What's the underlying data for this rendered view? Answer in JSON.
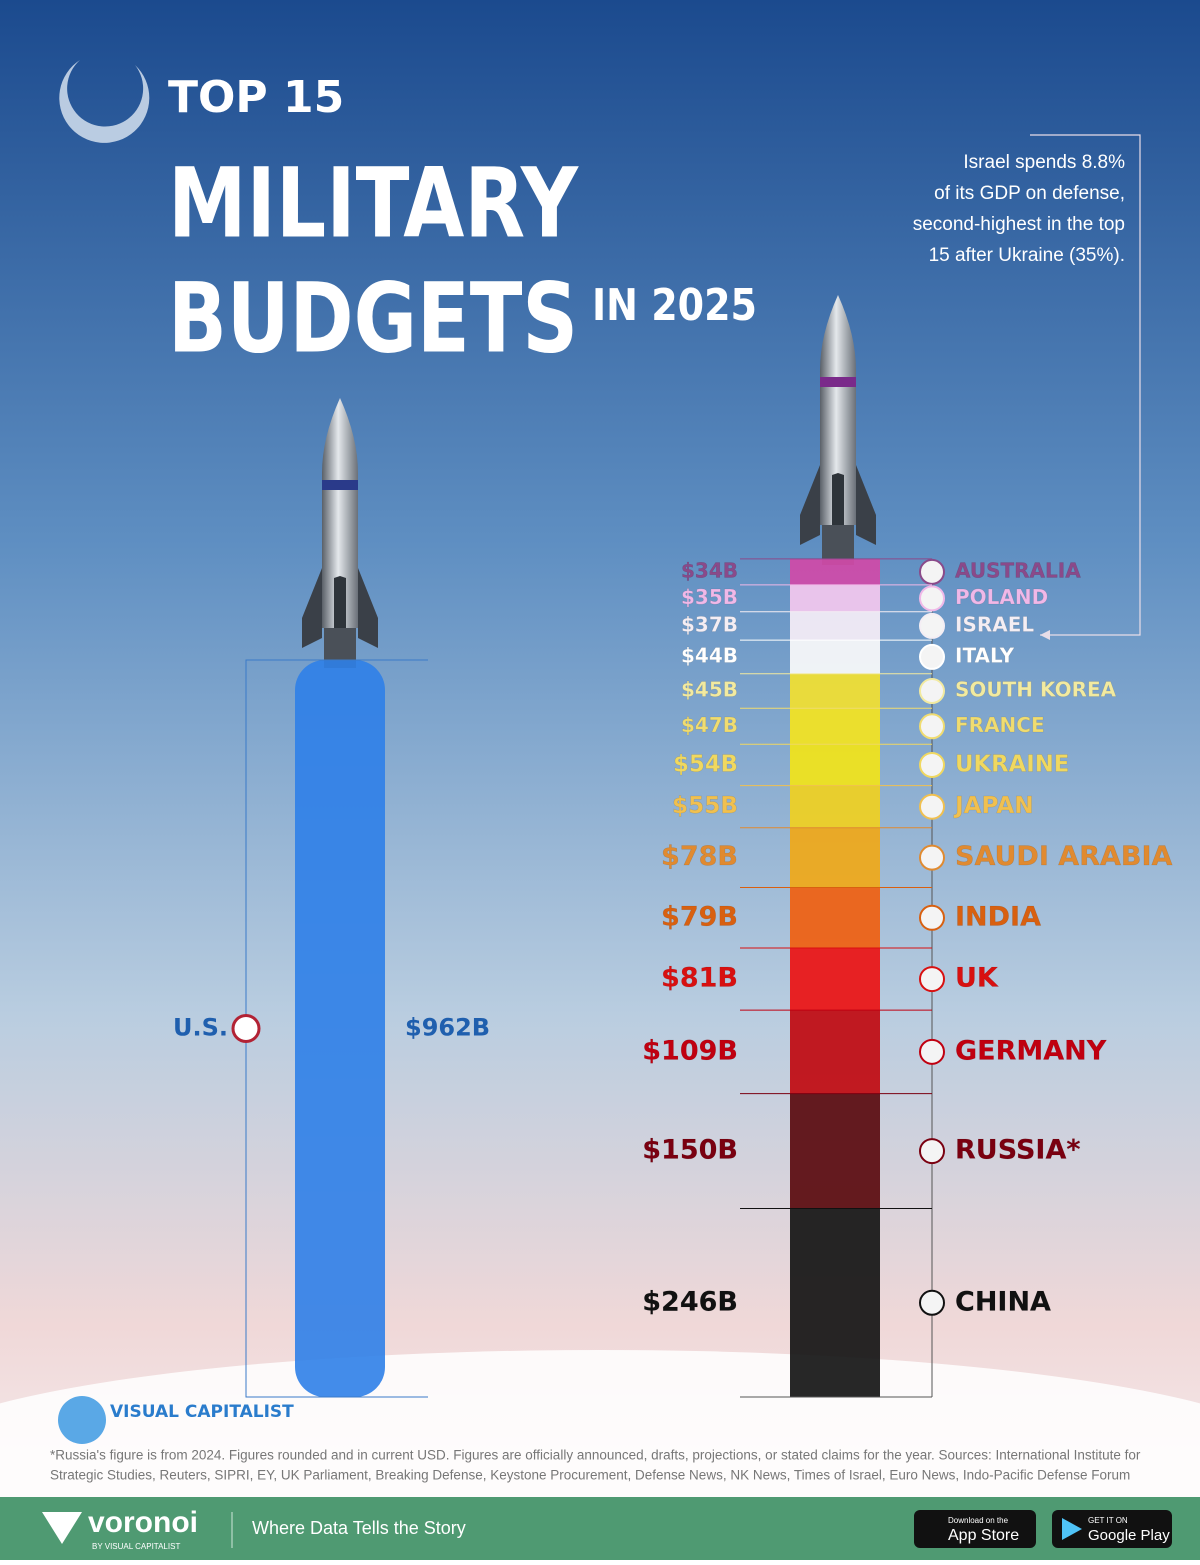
{
  "chart_data": {
    "type": "rocket-stack",
    "title": {
      "top": "TOP 15",
      "line1": "MILITARY",
      "line2": "BUDGETS",
      "year": "IN 2025"
    },
    "annotation": [
      "Israel spends 8.8%",
      "of its GDP on defense,",
      "second-highest in the top",
      "15 after Ukraine (35%)."
    ],
    "left": {
      "name": "U.S.",
      "values": [
        962
      ],
      "value_labels": [
        "$962B"
      ],
      "color": "#2f7fe8",
      "label_color": "#1f5fae"
    },
    "right": {
      "categories": [
        "AUSTRALIA",
        "POLAND",
        "ISRAEL",
        "ITALY",
        "SOUTH KOREA",
        "FRANCE",
        "UKRAINE",
        "JAPAN",
        "SAUDI ARABIA",
        "INDIA",
        "UK",
        "GERMANY",
        "RUSSIA*",
        "CHINA"
      ],
      "values": [
        34,
        35,
        37,
        44,
        45,
        47,
        54,
        55,
        78,
        79,
        81,
        109,
        150,
        246
      ],
      "value_labels": [
        "$34B",
        "$35B",
        "$37B",
        "$44B",
        "$45B",
        "$47B",
        "$54B",
        "$55B",
        "$78B",
        "$79B",
        "$81B",
        "$109B",
        "$150B",
        "$246B"
      ],
      "colors": [
        "#d04aa8",
        "#f4c8ee",
        "#f6eef6",
        "#fafafa",
        "#f2e030",
        "#f4e420",
        "#f2e418",
        "#f0d020",
        "#f0a818",
        "#f06010",
        "#ec1212",
        "#c00a10",
        "#5a0a0e",
        "#151515"
      ],
      "label_colors": [
        "#8a4a8a",
        "#f0b8e8",
        "#f4eef4",
        "#ffffff",
        "#f2eaa0",
        "#f0dc70",
        "#f0d860",
        "#f0c050",
        "#e08a30",
        "#d86010",
        "#d81010",
        "#c00010",
        "#7a0010",
        "#111111"
      ]
    },
    "footnote": [
      "*Russia's figure is from 2024. Figures rounded and in current USD. Figures are officially announced, drafts, projections, or stated claims for the year. Sources: International Institute for",
      "Strategic Studies, Reuters, SIPRI, EY, UK Parliament, Breaking Defense, Keystone Procurement, Defense News, NK News, Times of Israel, Euro News, Indo-Pacific Defense Forum"
    ],
    "brand": "VISUAL CAPITALIST",
    "footer": {
      "logo": "voronoi",
      "byline": "BY VISUAL CAPITALIST",
      "tagline": "Where Data Tells the Story",
      "appstore_small": "Download on the",
      "appstore": "App Store",
      "play_small": "GET IT ON",
      "play": "Google Play"
    }
  }
}
